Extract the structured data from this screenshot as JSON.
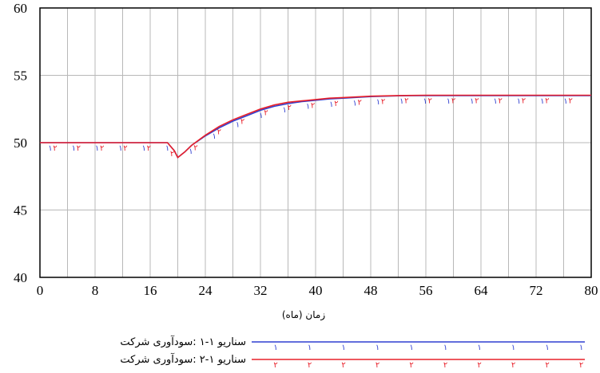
{
  "chart_data": {
    "type": "line",
    "title": "",
    "xlabel": "زمان (ماه)",
    "ylabel": "",
    "xlim": [
      0,
      80
    ],
    "ylim": [
      40,
      60
    ],
    "x_ticks": [
      "0",
      "8",
      "16",
      "24",
      "32",
      "40",
      "48",
      "56",
      "64",
      "72",
      "80"
    ],
    "y_ticks": [
      "60",
      "55",
      "50",
      "45",
      "40"
    ],
    "grid": true,
    "legend_placement": "bottom",
    "series": [
      {
        "name": "سناریو ۱-۱ :سودآوری شرکت",
        "marker": "۱",
        "color": "#2f3fd0",
        "x": [
          0,
          4,
          8,
          12,
          16,
          18.5,
          19.5,
          20,
          21,
          22,
          24,
          26,
          28,
          30,
          32,
          34,
          36,
          38,
          40,
          42,
          44,
          48,
          52,
          56,
          60,
          64,
          68,
          72,
          76,
          80
        ],
        "y": [
          50,
          50,
          50,
          50,
          50,
          50,
          49.4,
          48.9,
          49.3,
          49.8,
          50.5,
          51.1,
          51.6,
          52.0,
          52.4,
          52.7,
          52.9,
          53.05,
          53.15,
          53.25,
          53.3,
          53.42,
          53.48,
          53.5,
          53.5,
          53.5,
          53.5,
          53.5,
          53.5,
          53.5
        ]
      },
      {
        "name": "سناریو ۱-۲ :سودآوری شرکت",
        "marker": "۲",
        "color": "#e8202a",
        "x": [
          0,
          4,
          8,
          12,
          16,
          18.5,
          19.5,
          20,
          21,
          22,
          24,
          26,
          28,
          30,
          32,
          34,
          36,
          38,
          40,
          42,
          44,
          48,
          52,
          56,
          60,
          64,
          68,
          72,
          76,
          80
        ],
        "y": [
          50,
          50,
          50,
          50,
          50,
          50,
          49.4,
          48.9,
          49.3,
          49.8,
          50.55,
          51.2,
          51.7,
          52.1,
          52.5,
          52.8,
          53.0,
          53.1,
          53.2,
          53.3,
          53.35,
          53.45,
          53.5,
          53.52,
          53.52,
          53.52,
          53.52,
          53.52,
          53.52,
          53.52
        ]
      }
    ]
  }
}
